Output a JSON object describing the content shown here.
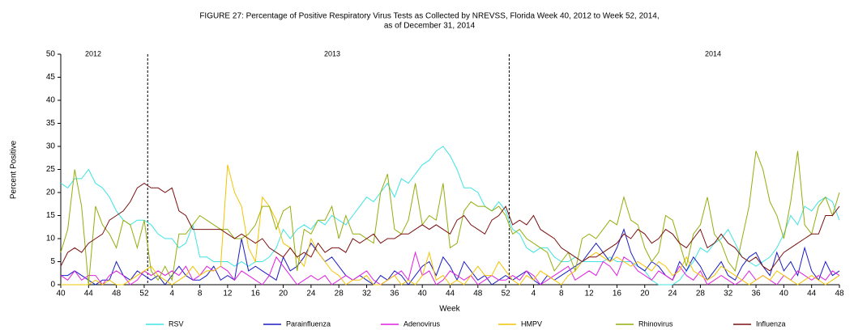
{
  "chart_data": {
    "type": "line",
    "title_lines": [
      "FIGURE  27: Percentage  of Positive Respiratory Virus Tests as Collected by NREVSS,  Florida Week 40, 2012 to Week 52, 2014,",
      "as of December 31, 2014"
    ],
    "x_label": "Week",
    "y_label": "Percent Positive",
    "annotations": [
      "2012",
      "2013",
      "2014"
    ],
    "categories": [
      "40",
      null,
      null,
      null,
      "44",
      null,
      null,
      null,
      "48",
      null,
      null,
      null,
      "52",
      null,
      null,
      null,
      "4",
      null,
      null,
      null,
      "8",
      null,
      null,
      null,
      "12",
      null,
      null,
      null,
      "16",
      null,
      null,
      null,
      "20",
      null,
      null,
      null,
      "24",
      null,
      null,
      null,
      "28",
      null,
      null,
      null,
      "32",
      null,
      null,
      null,
      "36",
      null,
      null,
      null,
      "40",
      null,
      null,
      null,
      "44",
      null,
      null,
      null,
      "48",
      null,
      null,
      null,
      "52",
      null,
      null,
      null,
      "4",
      null,
      null,
      null,
      "8",
      null,
      null,
      null,
      "12",
      null,
      null,
      null,
      "16",
      null,
      null,
      null,
      "20",
      null,
      null,
      null,
      "24",
      null,
      null,
      null,
      "28",
      null,
      null,
      null,
      "32",
      null,
      null,
      null,
      "36",
      null,
      null,
      null,
      "40",
      null,
      null,
      null,
      "44",
      null,
      null,
      null,
      "48"
    ],
    "ylim": [
      0,
      50
    ],
    "yticks": [
      0,
      5,
      10,
      15,
      20,
      25,
      30,
      35,
      40,
      45,
      50
    ],
    "series": [
      {
        "name": "RSV",
        "color": "#3fe3e3",
        "values": [
          22,
          21,
          23,
          23,
          25,
          22,
          21,
          19,
          16,
          14,
          13,
          14,
          14,
          13,
          11,
          10,
          10,
          8,
          9,
          13,
          6,
          6,
          5,
          5,
          5,
          4,
          5,
          4,
          5,
          5,
          6,
          8,
          12,
          10,
          12,
          13,
          12,
          14,
          13,
          15,
          14,
          13,
          15,
          17,
          19,
          18,
          20,
          22,
          19,
          23,
          22,
          24,
          26,
          27,
          29,
          30,
          28,
          25,
          21,
          21,
          20,
          17,
          16,
          18,
          16,
          12,
          11,
          8,
          7,
          8,
          8,
          6,
          5,
          5,
          6,
          5,
          5,
          5,
          5,
          6,
          5,
          5,
          5,
          4,
          3,
          1,
          0,
          0,
          0,
          1,
          3,
          5,
          8,
          7,
          9,
          10,
          12,
          9,
          6,
          5,
          4,
          5,
          6,
          8,
          11,
          15,
          13,
          17,
          16,
          18,
          19,
          18,
          14
        ]
      },
      {
        "name": "Parainfluenza",
        "color": "#1c1cc4",
        "values": [
          2,
          2,
          3,
          2,
          1,
          0,
          1,
          1,
          5,
          2,
          1,
          3,
          2,
          1,
          2,
          0,
          2,
          4,
          2,
          1,
          1,
          2,
          4,
          1,
          2,
          1,
          10,
          3,
          4,
          3,
          2,
          1,
          6,
          3,
          4,
          6,
          9,
          7,
          5,
          6,
          4,
          2,
          1,
          2,
          1,
          0,
          2,
          1,
          3,
          2,
          0,
          2,
          4,
          5,
          2,
          6,
          4,
          1,
          5,
          3,
          1,
          2,
          0,
          1,
          2,
          1,
          2,
          3,
          1,
          0,
          2,
          1,
          2,
          3,
          4,
          5,
          7,
          9,
          7,
          5,
          8,
          12,
          7,
          4,
          3,
          5,
          4,
          2,
          1,
          5,
          3,
          6,
          4,
          1,
          3,
          5,
          2,
          1,
          4,
          6,
          7,
          4,
          2,
          7,
          3,
          5,
          2,
          8,
          3,
          1,
          5,
          2,
          3
        ]
      },
      {
        "name": "Adenovirus",
        "color": "#e020e0",
        "values": [
          2,
          1,
          3,
          1,
          2,
          2,
          0,
          2,
          3,
          2,
          0,
          1,
          3,
          2,
          3,
          2,
          3,
          2,
          4,
          1,
          2,
          4,
          3,
          4,
          3,
          1,
          3,
          2,
          1,
          0,
          2,
          6,
          4,
          2,
          0,
          1,
          2,
          1,
          2,
          0,
          1,
          2,
          1,
          2,
          3,
          1,
          0,
          1,
          2,
          3,
          1,
          7,
          2,
          3,
          0,
          1,
          3,
          2,
          1,
          2,
          0,
          1,
          2,
          1,
          1,
          2,
          1,
          3,
          2,
          0,
          1,
          2,
          3,
          4,
          1,
          2,
          3,
          2,
          5,
          4,
          2,
          6,
          5,
          3,
          2,
          1,
          3,
          2,
          1,
          4,
          2,
          1,
          3,
          0,
          1,
          2,
          1,
          0,
          1,
          3,
          1,
          2,
          1,
          0,
          2,
          1,
          3,
          2,
          1,
          2,
          1,
          3,
          2
        ]
      },
      {
        "name": "HMPV",
        "color": "#f2c400",
        "values": [
          0,
          0,
          0,
          0,
          0,
          1,
          0,
          1,
          0,
          0,
          1,
          2,
          3,
          4,
          2,
          1,
          0,
          1,
          2,
          4,
          2,
          3,
          3,
          4,
          26,
          20,
          17,
          8,
          5,
          19,
          17,
          14,
          9,
          8,
          6,
          4,
          10,
          7,
          5,
          3,
          2,
          0,
          1,
          1,
          2,
          0,
          0,
          1,
          2,
          0,
          1,
          0,
          2,
          7,
          1,
          2,
          0,
          1,
          0,
          2,
          4,
          2,
          2,
          5,
          3,
          1,
          0,
          2,
          1,
          3,
          2,
          1,
          0,
          2,
          3,
          5,
          6,
          7,
          6,
          5,
          6,
          5,
          4,
          5,
          4,
          3,
          5,
          4,
          2,
          3,
          6,
          3,
          2,
          1,
          2,
          4,
          3,
          2,
          1,
          0,
          1,
          2,
          1,
          3,
          2,
          1,
          0,
          1,
          2,
          1,
          0,
          1,
          2
        ]
      },
      {
        "name": "Rhinovirus",
        "color": "#94ad0c",
        "values": [
          7,
          12,
          25,
          17,
          0,
          17,
          13,
          11,
          8,
          14,
          13,
          8,
          14,
          3,
          1,
          4,
          1,
          11,
          11,
          13,
          15,
          14,
          13,
          12,
          12,
          10,
          10,
          11,
          13,
          17,
          17,
          12,
          16,
          17,
          3,
          12,
          11,
          14,
          14,
          17,
          10,
          15,
          11,
          11,
          10,
          9,
          20,
          24,
          12,
          11,
          14,
          22,
          13,
          15,
          14,
          22,
          8,
          9,
          16,
          18,
          17,
          17,
          16,
          17,
          15,
          11,
          12,
          10,
          9,
          8,
          7,
          3,
          5,
          7,
          3,
          10,
          11,
          10,
          12,
          14,
          13,
          19,
          14,
          13,
          8,
          5,
          7,
          15,
          14,
          9,
          4,
          11,
          13,
          19,
          11,
          9,
          5,
          3,
          10,
          17,
          29,
          25,
          18,
          15,
          10,
          18,
          29,
          13,
          11,
          17,
          19,
          15,
          20
        ]
      },
      {
        "name": "Influenza",
        "color": "#7a1010",
        "values": [
          4,
          7,
          8,
          7,
          9,
          10,
          11,
          14,
          15,
          16,
          18,
          21,
          22,
          21,
          21,
          20,
          21,
          16,
          15,
          12,
          12,
          12,
          12,
          12,
          11,
          10,
          11,
          10,
          9,
          10,
          8,
          7,
          6,
          8,
          6,
          7,
          6,
          9,
          7,
          8,
          8,
          7,
          10,
          9,
          10,
          11,
          9,
          10,
          10,
          11,
          11,
          12,
          13,
          12,
          13,
          12,
          11,
          14,
          15,
          13,
          12,
          11,
          14,
          15,
          17,
          13,
          14,
          13,
          15,
          12,
          11,
          10,
          8,
          7,
          6,
          5,
          6,
          6,
          7,
          8,
          9,
          11,
          10,
          12,
          11,
          9,
          10,
          12,
          11,
          9,
          8,
          10,
          12,
          8,
          9,
          11,
          9,
          8,
          6,
          5,
          6,
          4,
          3,
          5,
          7,
          8,
          9,
          10,
          11,
          11,
          15,
          15,
          17
        ]
      }
    ]
  }
}
